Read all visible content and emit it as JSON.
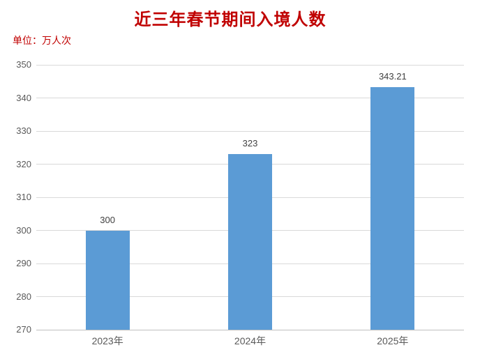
{
  "chart_data": {
    "type": "bar",
    "title": "近三年春节期间入境人数",
    "unit_label": "单位：万人次",
    "categories": [
      "2023年",
      "2024年",
      "2025年"
    ],
    "values": [
      300,
      323,
      343.21
    ],
    "value_labels": [
      "300",
      "323",
      "343.21"
    ],
    "xlabel": "",
    "ylabel": "",
    "ylim": [
      270,
      350
    ],
    "ytick_step": 10,
    "yticks": [
      270,
      280,
      290,
      300,
      310,
      320,
      330,
      340,
      350
    ],
    "grid": "horizontal",
    "legend": "none",
    "colors": {
      "bar": "#5B9BD5",
      "title": "#C00000",
      "unit_label": "#C00000",
      "gridline": "#D9D9D9",
      "axis_line": "#BFBFBF",
      "tick_label": "#595959",
      "value_label": "#404040",
      "background": "#FFFFFF"
    }
  }
}
